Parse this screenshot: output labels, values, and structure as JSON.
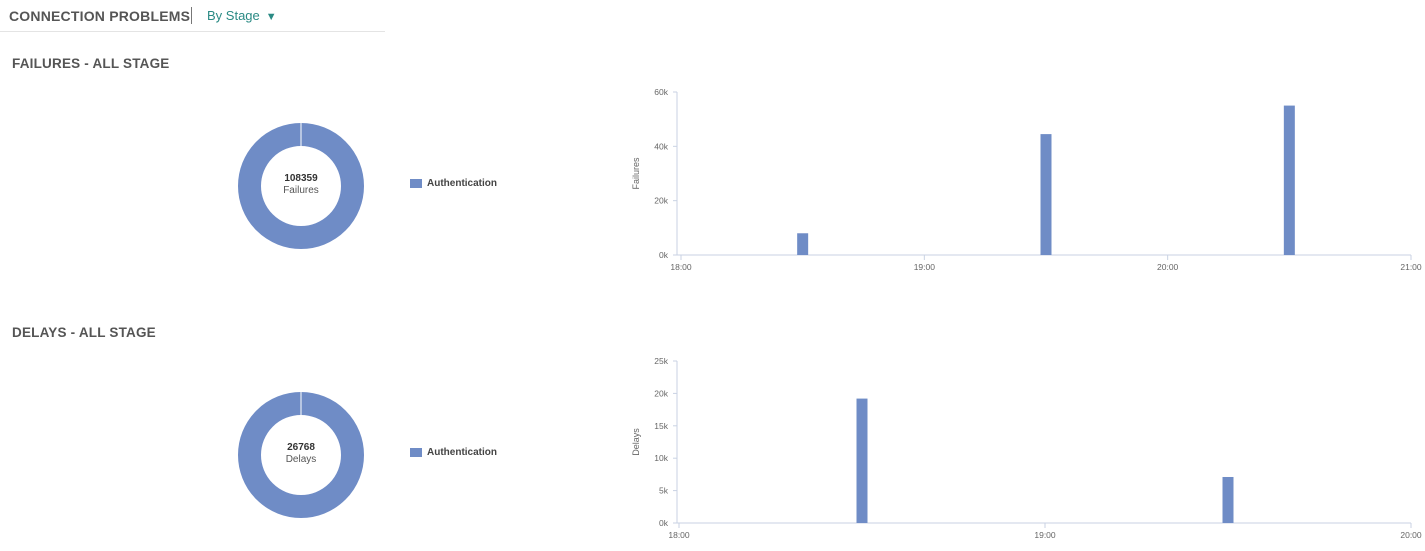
{
  "header": {
    "title": "CONNECTION PROBLEMS",
    "dropdown": {
      "label": "By Stage",
      "caret": "▼",
      "caret_icon": "caret-down-icon"
    }
  },
  "colors": {
    "series": "#6f8cc6",
    "accent": "#2a8a84",
    "axis": "#c9d2e3",
    "text": "#555555"
  },
  "sections": [
    {
      "title": "FAILURES - ALL STAGE",
      "donut": {
        "value": "108359",
        "label": "Failures"
      },
      "legend": [
        {
          "name": "Authentication",
          "color": "#6f8cc6"
        }
      ]
    },
    {
      "title": "DELAYS - ALL STAGE",
      "donut": {
        "value": "26768",
        "label": "Delays"
      },
      "legend": [
        {
          "name": "Authentication",
          "color": "#6f8cc6"
        }
      ]
    }
  ],
  "chart_data": [
    {
      "type": "pie",
      "variant": "donut",
      "categories": [
        "Authentication"
      ],
      "values": [
        108359
      ],
      "center_value": "108359",
      "center_label": "Failures",
      "legend": "right"
    },
    {
      "type": "bar",
      "ylabel": "Failures",
      "yticks": [
        "0k",
        "20k",
        "40k",
        "60k"
      ],
      "ylim": [
        0,
        60000
      ],
      "xticks": [
        "18:00",
        "19:00",
        "20:00",
        "21:00"
      ],
      "xlim_hours": [
        18,
        21
      ],
      "x": [
        "18:30",
        "19:30",
        "20:30"
      ],
      "values": [
        8000,
        44500,
        55000
      ],
      "grid": false
    },
    {
      "type": "pie",
      "variant": "donut",
      "categories": [
        "Authentication"
      ],
      "values": [
        26768
      ],
      "center_value": "26768",
      "center_label": "Delays",
      "legend": "right"
    },
    {
      "type": "bar",
      "ylabel": "Delays",
      "yticks": [
        "0k",
        "5k",
        "10k",
        "15k",
        "20k",
        "25k"
      ],
      "ylim": [
        0,
        25000
      ],
      "xticks": [
        "18:00",
        "19:00",
        "20:00"
      ],
      "xlim_hours": [
        18,
        20
      ],
      "x": [
        "18:30",
        "19:30"
      ],
      "values": [
        19200,
        7100
      ],
      "grid": false
    }
  ]
}
